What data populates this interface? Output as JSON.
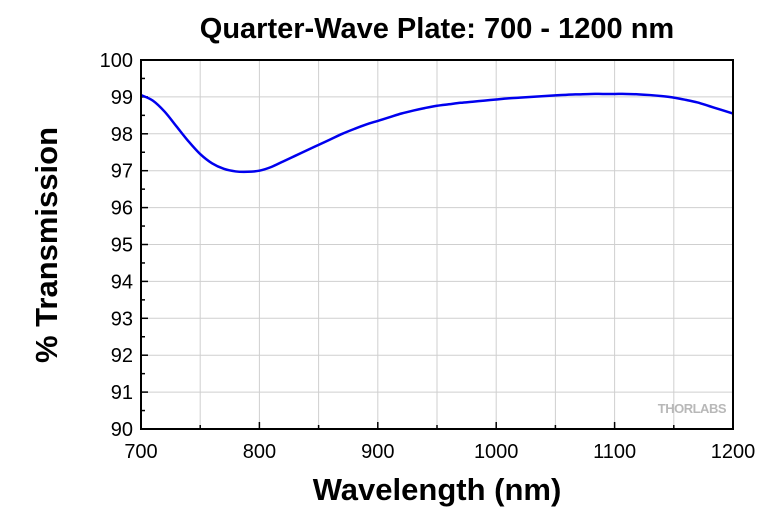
{
  "chart_data": {
    "type": "line",
    "title": "Quarter-Wave Plate: 700 - 1200 nm",
    "xlabel": "Wavelength (nm)",
    "ylabel": "% Transmission",
    "xlim": [
      700,
      1200
    ],
    "ylim": [
      90,
      100
    ],
    "x_ticks": [
      700,
      800,
      900,
      1000,
      1100,
      1200
    ],
    "y_ticks": [
      90,
      91,
      92,
      93,
      94,
      95,
      96,
      97,
      98,
      99,
      100
    ],
    "grid": true,
    "legend": "none",
    "series": [
      {
        "color": "#0000ee",
        "x": [
          700,
          710,
          720,
          730,
          740,
          750,
          760,
          770,
          780,
          790,
          800,
          810,
          820,
          830,
          840,
          850,
          860,
          870,
          880,
          890,
          900,
          910,
          920,
          930,
          940,
          950,
          960,
          970,
          980,
          990,
          1000,
          1010,
          1020,
          1030,
          1040,
          1050,
          1060,
          1070,
          1080,
          1090,
          1100,
          1110,
          1120,
          1130,
          1140,
          1150,
          1160,
          1170,
          1180,
          1190,
          1200
        ],
        "y": [
          99.05,
          98.9,
          98.6,
          98.2,
          97.8,
          97.45,
          97.2,
          97.05,
          96.98,
          96.97,
          97.0,
          97.1,
          97.25,
          97.4,
          97.55,
          97.7,
          97.85,
          98.0,
          98.13,
          98.25,
          98.35,
          98.45,
          98.55,
          98.63,
          98.7,
          98.76,
          98.8,
          98.84,
          98.87,
          98.9,
          98.93,
          98.96,
          98.98,
          99.0,
          99.02,
          99.04,
          99.06,
          99.07,
          99.08,
          99.08,
          99.08,
          99.08,
          99.07,
          99.05,
          99.02,
          98.98,
          98.92,
          98.85,
          98.75,
          98.65,
          98.55
        ]
      }
    ]
  },
  "watermark": "THORLABS"
}
